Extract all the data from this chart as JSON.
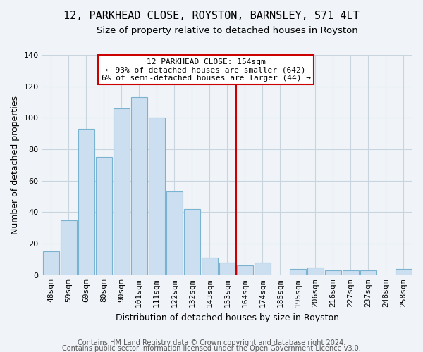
{
  "title": "12, PARKHEAD CLOSE, ROYSTON, BARNSLEY, S71 4LT",
  "subtitle": "Size of property relative to detached houses in Royston",
  "xlabel": "Distribution of detached houses by size in Royston",
  "ylabel": "Number of detached properties",
  "bar_labels": [
    "48sqm",
    "59sqm",
    "69sqm",
    "80sqm",
    "90sqm",
    "101sqm",
    "111sqm",
    "122sqm",
    "132sqm",
    "143sqm",
    "153sqm",
    "164sqm",
    "174sqm",
    "185sqm",
    "195sqm",
    "206sqm",
    "216sqm",
    "227sqm",
    "237sqm",
    "248sqm",
    "258sqm"
  ],
  "bar_values": [
    15,
    35,
    93,
    75,
    106,
    113,
    100,
    53,
    42,
    11,
    8,
    6,
    8,
    0,
    4,
    5,
    3,
    3,
    3,
    0,
    4
  ],
  "bar_color": "#ccdff0",
  "bar_edge_color": "#7ab3d0",
  "vline_x": 10.5,
  "vline_color": "#cc0000",
  "annotation_title": "12 PARKHEAD CLOSE: 154sqm",
  "annotation_line1": "← 93% of detached houses are smaller (642)",
  "annotation_line2": "6% of semi-detached houses are larger (44) →",
  "annotation_box_color": "#ffffff",
  "annotation_box_edge": "#cc0000",
  "ylim": [
    0,
    140
  ],
  "yticks": [
    0,
    20,
    40,
    60,
    80,
    100,
    120,
    140
  ],
  "footer_line1": "Contains HM Land Registry data © Crown copyright and database right 2024.",
  "footer_line2": "Contains public sector information licensed under the Open Government Licence v3.0.",
  "title_fontsize": 11,
  "subtitle_fontsize": 9.5,
  "axis_label_fontsize": 9,
  "tick_fontsize": 8,
  "annotation_fontsize": 8,
  "footer_fontsize": 7,
  "background_color": "#f0f4f8",
  "plot_bg_color": "#f0f4f8",
  "grid_color": "#c8d4de"
}
